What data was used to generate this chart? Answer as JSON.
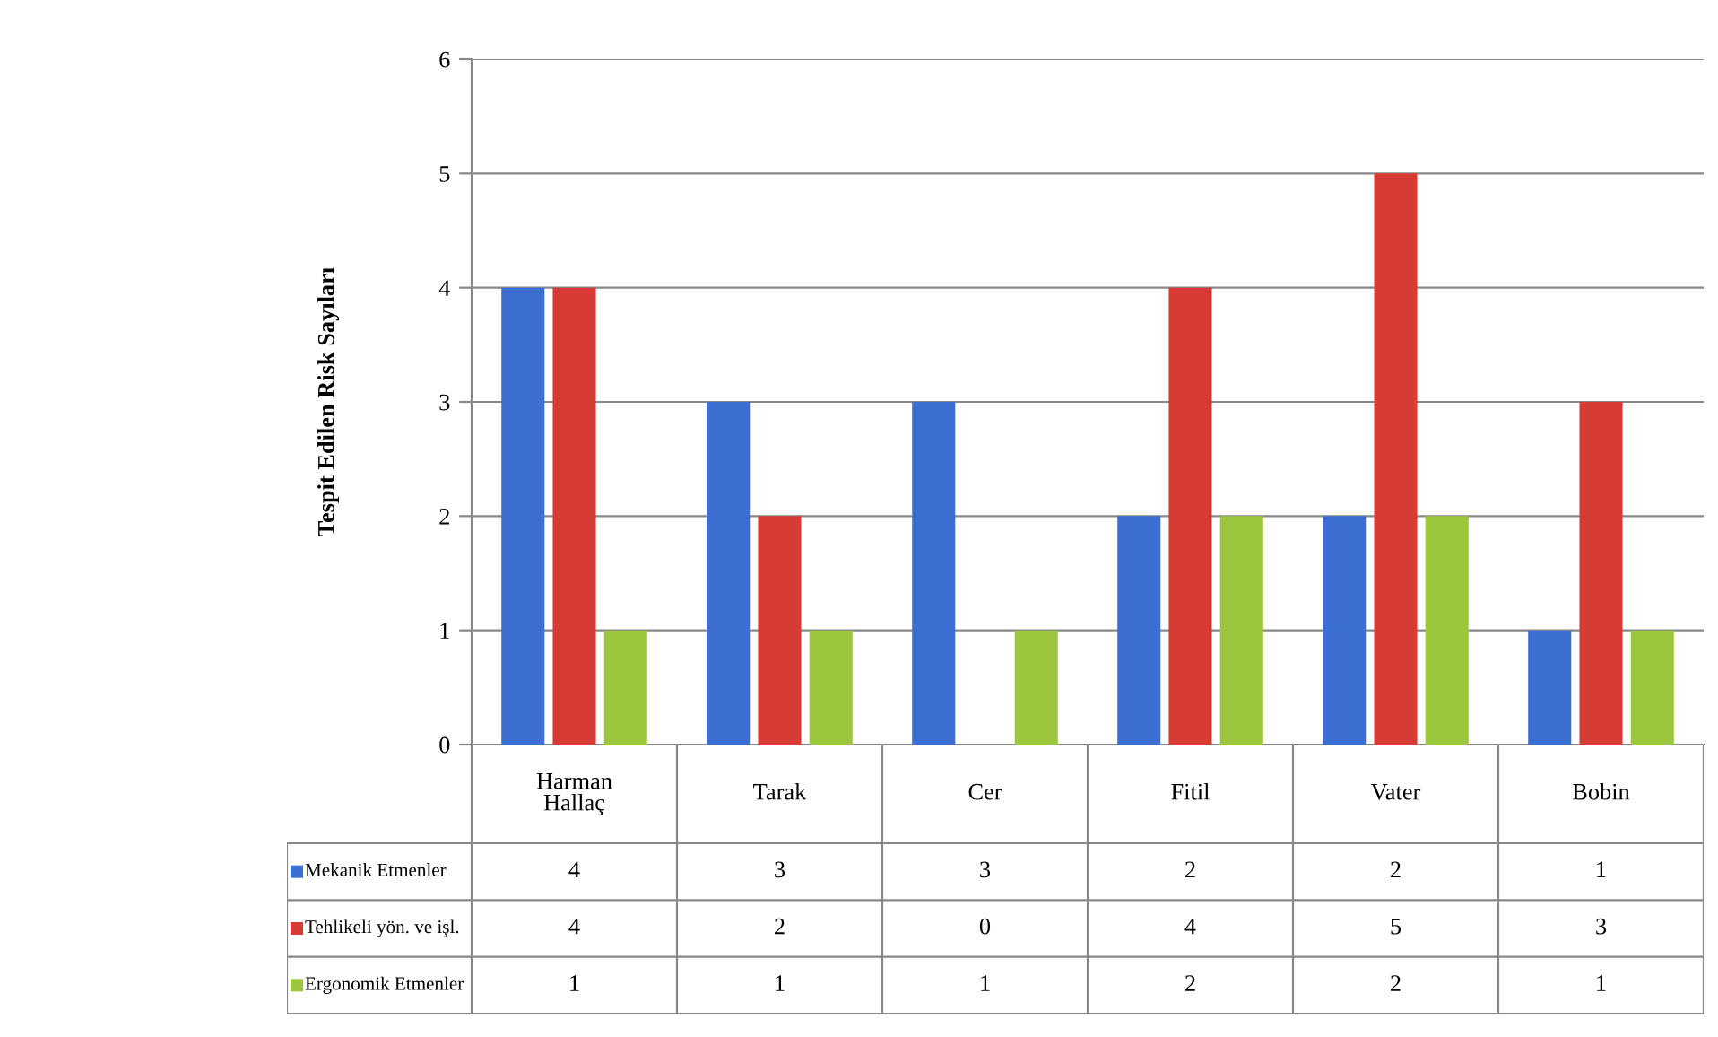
{
  "chart_data": {
    "type": "bar",
    "ylabel": "Tespit Edilen Risk Sayıları",
    "categories": [
      "Harman\nHallaç",
      "Tarak",
      "Cer",
      "Fitil",
      "Vater",
      "Bobin"
    ],
    "series": [
      {
        "name": "Mekanik Etmenler",
        "color": "#3c6fd1",
        "values": [
          4,
          3,
          3,
          2,
          2,
          1
        ]
      },
      {
        "name": "Tehlikeli yön. ve işl.",
        "color": "#d63b36",
        "values": [
          4,
          2,
          0,
          4,
          5,
          3
        ]
      },
      {
        "name": "Ergonomik Etmenler",
        "color": "#9cc63e",
        "values": [
          1,
          1,
          1,
          2,
          2,
          1
        ]
      }
    ],
    "ylim": [
      0,
      6
    ],
    "yticks": [
      0,
      1,
      2,
      3,
      4,
      5,
      6
    ],
    "grid": "y",
    "legend": "bottom",
    "data_labels": true
  }
}
